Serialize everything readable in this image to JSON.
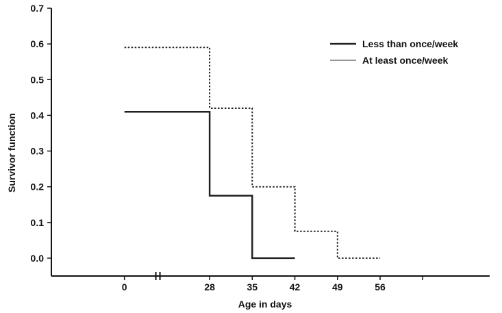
{
  "chart_data": {
    "type": "line",
    "step": true,
    "xlabel": "Age in days",
    "ylabel": "Survivor function",
    "xlim": [
      -12,
      60
    ],
    "ylim": [
      -0.05,
      0.7
    ],
    "x_tick_positions": [
      0,
      14,
      21,
      28,
      35,
      42,
      49
    ],
    "x_tick_labels": [
      "0",
      "28",
      "35",
      "42",
      "49",
      "56"
    ],
    "x_tick_label_positions": [
      0,
      14,
      21,
      28,
      35,
      42
    ],
    "axis_break_at": 5.5,
    "y_ticks": [
      0.0,
      0.1,
      0.2,
      0.3,
      0.4,
      0.5,
      0.6,
      0.7
    ],
    "y_tick_labels": [
      "0.0",
      "0.1",
      "0.2",
      "0.3",
      "0.4",
      "0.5",
      "0.6",
      "0.7"
    ],
    "grid": false,
    "legend_position": "top-right",
    "series": [
      {
        "name": "Less than once/week",
        "style": "solid",
        "color": "#222222",
        "x": [
          0,
          14,
          14,
          21,
          21,
          28
        ],
        "y": [
          0.41,
          0.41,
          0.175,
          0.175,
          0.0,
          0.0
        ]
      },
      {
        "name": "At least once/week",
        "style": "dotted",
        "color": "#222222",
        "x": [
          0,
          14,
          14,
          21,
          21,
          28,
          28,
          35,
          35,
          42
        ],
        "y": [
          0.59,
          0.59,
          0.42,
          0.42,
          0.2,
          0.2,
          0.075,
          0.075,
          0.0,
          0.0
        ]
      }
    ]
  }
}
